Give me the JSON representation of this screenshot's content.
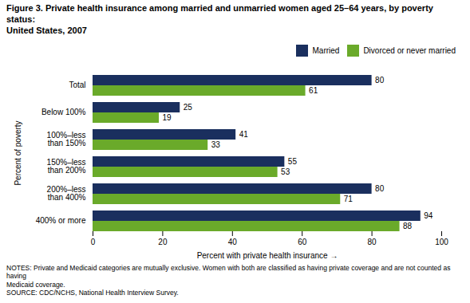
{
  "chart_data": {
    "type": "bar",
    "orientation": "horizontal",
    "title": "Figure 3. Private health insurance among married and unmarried women aged 25–64 years, by poverty status:\nUnited States, 2007",
    "categories": [
      "Total",
      "Below 100%",
      "100%–less\nthan 150%",
      "150%–less\nthan 200%",
      "200%–less\nthan 400%",
      "400% or more"
    ],
    "series": [
      {
        "name": "Married",
        "color": "#1a2f5e",
        "values": [
          80,
          25,
          41,
          55,
          80,
          94
        ]
      },
      {
        "name": "Divorced or never married",
        "color": "#6aaa2a",
        "values": [
          61,
          19,
          33,
          53,
          71,
          88
        ]
      }
    ],
    "xlabel": "Percent with private health insurance",
    "ylabel": "Percent of poverty",
    "xlim": [
      0,
      100
    ],
    "xticks": [
      0,
      20,
      40,
      60,
      80,
      100
    ],
    "grid": false,
    "legend": "upper right",
    "data_labels": true,
    "notes": "NOTES: Private and Medicaid categories are mutually exclusive. Women with both are classified as having private coverage and are not counted as having\nMedicaid coverage.\nSOURCE: CDC/NCHS, National Health Interview Survey."
  }
}
